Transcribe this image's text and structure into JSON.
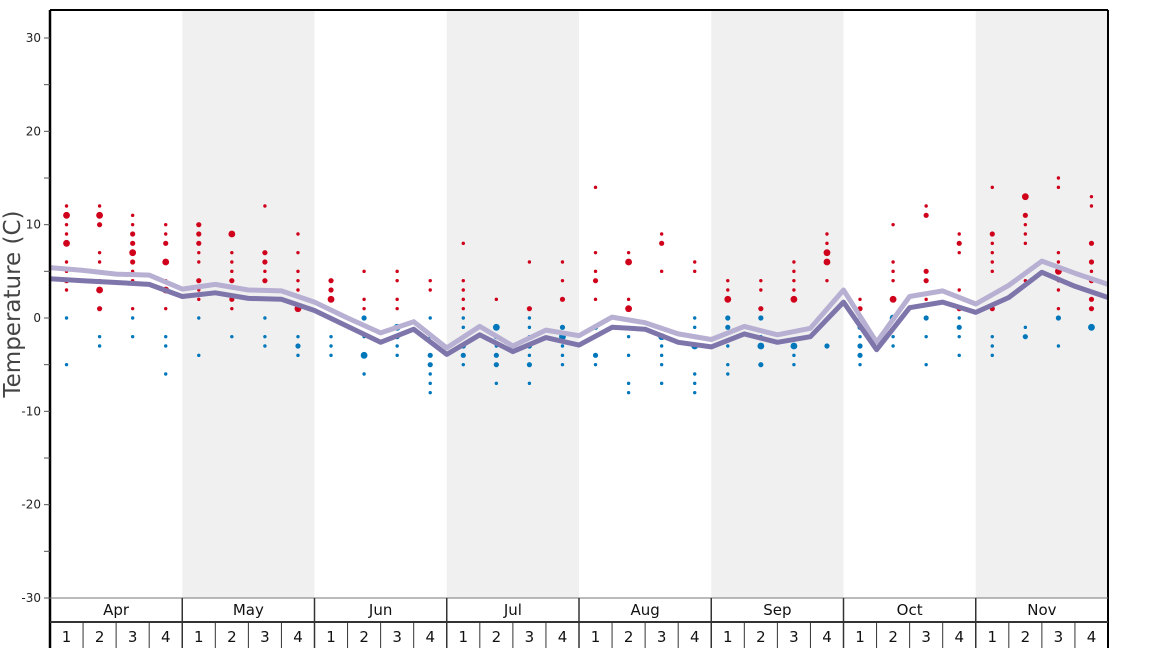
{
  "chart_data": {
    "type": "line",
    "ylabel": "Temperature (C)",
    "xlabel": "",
    "ylim": [
      -30,
      33
    ],
    "y_ticks": [
      30,
      20,
      10,
      0,
      -10,
      -20,
      -30
    ],
    "y_tick_labels": [
      "30",
      "20",
      "10",
      "0",
      "-10",
      "-20",
      "-30"
    ],
    "grid": false,
    "months": [
      "Apr",
      "May",
      "Jun",
      "Jul",
      "Aug",
      "Sep",
      "Oct",
      "Nov"
    ],
    "week_labels": [
      "1",
      "2",
      "3",
      "4"
    ],
    "colors": {
      "warm": "#d0021b",
      "cold": "#0077bb",
      "line_light": "#b7b0d2",
      "line_dark": "#7e75ab",
      "band": "#f0f0f0"
    },
    "series": [
      {
        "name": "light",
        "values": [
          5.4,
          5.1,
          4.7,
          4.6,
          3.1,
          3.6,
          3.0,
          2.9,
          1.7,
          0.0,
          -1.6,
          -0.4,
          -3.2,
          -0.9,
          -3.0,
          -1.3,
          -1.9,
          0.1,
          -0.5,
          -1.7,
          -2.3,
          -0.9,
          -1.8,
          -1.1,
          3.0,
          -2.6,
          2.3,
          2.9,
          1.5,
          3.5,
          6.1,
          4.8,
          3.6
        ]
      },
      {
        "name": "dark",
        "values": [
          4.2,
          4.0,
          3.8,
          3.6,
          2.3,
          2.7,
          2.1,
          2.0,
          0.8,
          -0.9,
          -2.6,
          -1.2,
          -3.9,
          -1.8,
          -3.6,
          -2.1,
          -2.9,
          -1.0,
          -1.2,
          -2.6,
          -3.1,
          -1.7,
          -2.6,
          -2.0,
          1.7,
          -3.4,
          1.1,
          1.7,
          0.6,
          2.2,
          4.9,
          3.4,
          2.2
        ]
      }
    ],
    "weekly_points": [
      [
        [
          12,
          1
        ],
        [
          11,
          3
        ],
        [
          10,
          1
        ],
        [
          9,
          1
        ],
        [
          8,
          3
        ],
        [
          6,
          1
        ],
        [
          5,
          1
        ],
        [
          4,
          2
        ],
        [
          3,
          1
        ],
        [
          0,
          1
        ],
        [
          -5,
          1
        ]
      ],
      [
        [
          12,
          1
        ],
        [
          11,
          3
        ],
        [
          10,
          2
        ],
        [
          7,
          1
        ],
        [
          6,
          1
        ],
        [
          4,
          1
        ],
        [
          3,
          3
        ],
        [
          1,
          2
        ],
        [
          -2,
          1
        ],
        [
          -3,
          1
        ]
      ],
      [
        [
          11,
          1
        ],
        [
          10,
          1
        ],
        [
          9,
          2
        ],
        [
          8,
          2
        ],
        [
          7,
          3
        ],
        [
          6,
          2
        ],
        [
          5,
          1
        ],
        [
          4,
          1
        ],
        [
          1,
          1
        ],
        [
          0,
          1
        ],
        [
          -2,
          1
        ]
      ],
      [
        [
          10,
          1
        ],
        [
          9,
          1
        ],
        [
          8,
          2
        ],
        [
          6,
          3
        ],
        [
          4,
          1
        ],
        [
          3,
          3
        ],
        [
          1,
          1
        ],
        [
          -2,
          1
        ],
        [
          -3,
          1
        ],
        [
          -6,
          1
        ]
      ],
      [
        [
          10,
          2
        ],
        [
          9,
          2
        ],
        [
          8,
          2
        ],
        [
          7,
          1
        ],
        [
          6,
          1
        ],
        [
          4,
          2
        ],
        [
          3,
          1
        ],
        [
          2,
          1
        ],
        [
          0,
          1
        ],
        [
          -4,
          1
        ]
      ],
      [
        [
          9,
          3
        ],
        [
          7,
          1
        ],
        [
          6,
          1
        ],
        [
          5,
          1
        ],
        [
          4,
          2
        ],
        [
          2,
          2
        ],
        [
          1,
          1
        ],
        [
          -2,
          1
        ]
      ],
      [
        [
          12,
          1
        ],
        [
          7,
          2
        ],
        [
          6,
          2
        ],
        [
          5,
          1
        ],
        [
          4,
          2
        ],
        [
          2,
          1
        ],
        [
          0,
          1
        ],
        [
          -2,
          1
        ],
        [
          -3,
          1
        ]
      ],
      [
        [
          9,
          1
        ],
        [
          7,
          1
        ],
        [
          5,
          1
        ],
        [
          4,
          1
        ],
        [
          3,
          1
        ],
        [
          1,
          3
        ],
        [
          -2,
          1
        ],
        [
          -3,
          2
        ],
        [
          -4,
          1
        ]
      ],
      [
        [
          4,
          2
        ],
        [
          3,
          2
        ],
        [
          2,
          3
        ],
        [
          0,
          1
        ],
        [
          -2,
          1
        ],
        [
          -3,
          1
        ],
        [
          -4,
          1
        ]
      ],
      [
        [
          5,
          1
        ],
        [
          2,
          1
        ],
        [
          1,
          1
        ],
        [
          0,
          2
        ],
        [
          -2,
          1
        ],
        [
          -4,
          3
        ],
        [
          -6,
          1
        ]
      ],
      [
        [
          5,
          1
        ],
        [
          4,
          1
        ],
        [
          2,
          1
        ],
        [
          1,
          1
        ],
        [
          -1,
          3
        ],
        [
          -2,
          2
        ],
        [
          -3,
          1
        ],
        [
          -4,
          1
        ]
      ],
      [
        [
          4,
          1
        ],
        [
          3,
          1
        ],
        [
          0,
          1
        ],
        [
          -2,
          1
        ],
        [
          -4,
          2
        ],
        [
          -5,
          2
        ],
        [
          -6,
          1
        ],
        [
          -7,
          1
        ],
        [
          -8,
          1
        ]
      ],
      [
        [
          8,
          1
        ],
        [
          4,
          1
        ],
        [
          3,
          1
        ],
        [
          2,
          1
        ],
        [
          1,
          1
        ],
        [
          0,
          1
        ],
        [
          -1,
          1
        ],
        [
          -3,
          2
        ],
        [
          -4,
          2
        ],
        [
          -5,
          1
        ]
      ],
      [
        [
          2,
          1
        ],
        [
          -1,
          3
        ],
        [
          -2,
          2
        ],
        [
          -3,
          1
        ],
        [
          -4,
          2
        ],
        [
          -5,
          2
        ],
        [
          -7,
          1
        ]
      ],
      [
        [
          6,
          1
        ],
        [
          1,
          2
        ],
        [
          0,
          1
        ],
        [
          -1,
          1
        ],
        [
          -2,
          1
        ],
        [
          -3,
          2
        ],
        [
          -4,
          1
        ],
        [
          -5,
          2
        ],
        [
          -7,
          1
        ]
      ],
      [
        [
          6,
          1
        ],
        [
          4,
          1
        ],
        [
          2,
          2
        ],
        [
          -1,
          2
        ],
        [
          -2,
          3
        ],
        [
          -3,
          1
        ],
        [
          -4,
          1
        ],
        [
          -5,
          1
        ]
      ],
      [
        [
          14,
          1
        ],
        [
          7,
          1
        ],
        [
          5,
          1
        ],
        [
          4,
          2
        ],
        [
          2,
          1
        ],
        [
          -1,
          2
        ],
        [
          -2,
          1
        ],
        [
          -4,
          2
        ],
        [
          -5,
          1
        ]
      ],
      [
        [
          7,
          1
        ],
        [
          6,
          3
        ],
        [
          2,
          1
        ],
        [
          1,
          3
        ],
        [
          -2,
          1
        ],
        [
          -4,
          1
        ],
        [
          -7,
          1
        ],
        [
          -8,
          1
        ]
      ],
      [
        [
          9,
          1
        ],
        [
          8,
          2
        ],
        [
          5,
          1
        ],
        [
          -2,
          3
        ],
        [
          -3,
          1
        ],
        [
          -4,
          1
        ],
        [
          -5,
          1
        ],
        [
          -7,
          1
        ]
      ],
      [
        [
          6,
          1
        ],
        [
          5,
          1
        ],
        [
          0,
          1
        ],
        [
          -1,
          1
        ],
        [
          -2,
          1
        ],
        [
          -3,
          3
        ],
        [
          -6,
          1
        ],
        [
          -7,
          1
        ],
        [
          -8,
          1
        ]
      ],
      [
        [
          4,
          1
        ],
        [
          3,
          1
        ],
        [
          2,
          3
        ],
        [
          0,
          2
        ],
        [
          -1,
          2
        ],
        [
          -3,
          1
        ],
        [
          -5,
          1
        ],
        [
          -6,
          1
        ]
      ],
      [
        [
          4,
          1
        ],
        [
          3,
          1
        ],
        [
          1,
          2
        ],
        [
          0,
          2
        ],
        [
          -2,
          1
        ],
        [
          -3,
          3
        ],
        [
          -5,
          2
        ]
      ],
      [
        [
          6,
          1
        ],
        [
          5,
          1
        ],
        [
          4,
          1
        ],
        [
          3,
          1
        ],
        [
          2,
          3
        ],
        [
          -3,
          3
        ],
        [
          -4,
          1
        ],
        [
          -5,
          1
        ]
      ],
      [
        [
          9,
          1
        ],
        [
          8,
          1
        ],
        [
          7,
          3
        ],
        [
          6,
          3
        ],
        [
          4,
          1
        ],
        [
          1,
          1
        ],
        [
          -3,
          2
        ]
      ],
      [
        [
          2,
          1
        ],
        [
          1,
          2
        ],
        [
          0,
          1
        ],
        [
          -1,
          2
        ],
        [
          -2,
          1
        ],
        [
          -3,
          2
        ],
        [
          -4,
          2
        ],
        [
          -5,
          1
        ]
      ],
      [
        [
          10,
          1
        ],
        [
          6,
          1
        ],
        [
          5,
          1
        ],
        [
          4,
          1
        ],
        [
          2,
          3
        ],
        [
          0,
          3
        ],
        [
          -2,
          1
        ],
        [
          -3,
          1
        ]
      ],
      [
        [
          12,
          1
        ],
        [
          11,
          2
        ],
        [
          5,
          2
        ],
        [
          4,
          2
        ],
        [
          2,
          1
        ],
        [
          0,
          2
        ],
        [
          -2,
          1
        ],
        [
          -5,
          1
        ]
      ],
      [
        [
          9,
          1
        ],
        [
          8,
          2
        ],
        [
          7,
          1
        ],
        [
          3,
          1
        ],
        [
          1,
          2
        ],
        [
          0,
          1
        ],
        [
          -1,
          2
        ],
        [
          -2,
          1
        ],
        [
          -4,
          1
        ]
      ],
      [
        [
          14,
          1
        ],
        [
          9,
          2
        ],
        [
          8,
          1
        ],
        [
          7,
          1
        ],
        [
          6,
          1
        ],
        [
          5,
          1
        ],
        [
          1,
          2
        ],
        [
          -2,
          1
        ],
        [
          -3,
          1
        ],
        [
          -4,
          1
        ]
      ],
      [
        [
          13,
          3
        ],
        [
          11,
          2
        ],
        [
          10,
          1
        ],
        [
          9,
          1
        ],
        [
          8,
          1
        ],
        [
          4,
          1
        ],
        [
          -1,
          1
        ],
        [
          -2,
          2
        ]
      ],
      [
        [
          15,
          1
        ],
        [
          14,
          1
        ],
        [
          7,
          1
        ],
        [
          6,
          1
        ],
        [
          5,
          3
        ],
        [
          4,
          1
        ],
        [
          3,
          1
        ],
        [
          1,
          1
        ],
        [
          0,
          2
        ],
        [
          -3,
          1
        ]
      ],
      [
        [
          13,
          1
        ],
        [
          12,
          1
        ],
        [
          8,
          2
        ],
        [
          6,
          2
        ],
        [
          5,
          1
        ],
        [
          4,
          2
        ],
        [
          2,
          2
        ],
        [
          1,
          2
        ],
        [
          -1,
          3
        ]
      ]
    ]
  }
}
